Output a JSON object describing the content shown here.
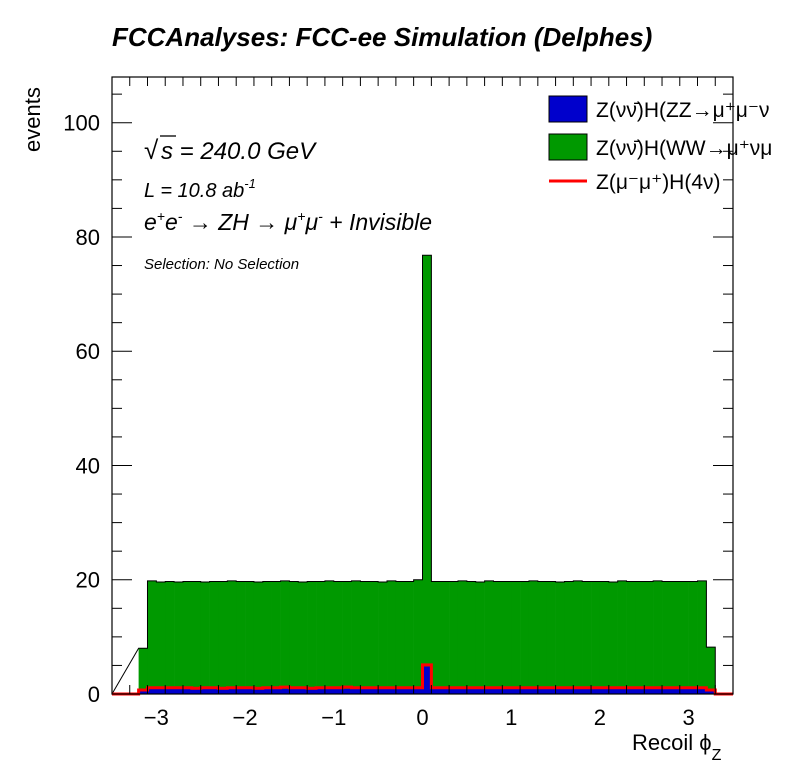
{
  "chart_data": {
    "type": "bar",
    "title": "FCCAnalyses: FCC-ee Simulation (Delphes)",
    "xlabel": "Recoil ϕ",
    "xlabel_sub": "Z",
    "ylabel": "events",
    "xlim": [
      -3.5,
      3.5
    ],
    "ylim": [
      0,
      108
    ],
    "x_ticks": [
      -3,
      -2,
      -1,
      0,
      1,
      2,
      3
    ],
    "x_tick_labels": [
      "−3",
      "−2",
      "−1",
      "0",
      "1",
      "2",
      "3"
    ],
    "y_ticks": [
      0,
      20,
      40,
      60,
      80,
      100
    ],
    "y_tick_labels": [
      "0",
      "20",
      "40",
      "60",
      "80",
      "100"
    ],
    "grid": false,
    "legend_position": "top-right",
    "annotations": {
      "sqrt_s": "s = 240.0 GeV",
      "lumi": "L = 10.8 ab",
      "lumi_exp": "-1",
      "process": "e",
      "selection": "Selection: No Selection"
    },
    "bin_edges_start": -3.2,
    "bin_width": 0.1,
    "series": [
      {
        "name": "Z(νν̄)H(ZZ→μ⁺μ⁻ν",
        "style": "stacked-fill",
        "color": "#0000cc",
        "values": [
          0.8,
          0.9,
          0.9,
          0.9,
          0.9,
          0.9,
          0.9,
          0.9,
          0.9,
          0.9,
          0.9,
          0.9,
          0.9,
          0.9,
          0.9,
          0.9,
          0.9,
          0.9,
          0.9,
          0.9,
          0.9,
          0.9,
          0.9,
          0.9,
          0.9,
          0.9,
          0.9,
          0.9,
          0.9,
          0.9,
          0.9,
          0.9,
          4.8,
          0.9,
          0.9,
          0.9,
          0.9,
          0.9,
          0.9,
          0.9,
          0.9,
          0.9,
          0.9,
          0.9,
          0.9,
          0.9,
          0.9,
          0.9,
          0.9,
          0.9,
          0.9,
          0.9,
          0.9,
          0.9,
          0.9,
          0.9,
          0.9,
          0.9,
          0.9,
          0.9,
          0.9,
          0.9,
          0.9,
          0.9,
          0.8
        ]
      },
      {
        "name": "Z(νν̄)H(WW→μ⁺νμ",
        "style": "stacked-fill",
        "color": "#009900",
        "values": [
          7.2,
          18.9,
          18.7,
          18.8,
          18.7,
          18.8,
          18.8,
          18.7,
          18.8,
          18.8,
          18.9,
          18.8,
          18.8,
          18.7,
          18.8,
          18.8,
          18.9,
          18.8,
          18.7,
          18.8,
          18.8,
          18.9,
          18.8,
          18.8,
          18.9,
          18.8,
          18.8,
          18.7,
          18.9,
          18.8,
          18.8,
          19.1,
          72.0,
          18.8,
          18.8,
          18.8,
          18.9,
          18.8,
          18.7,
          18.9,
          18.8,
          18.8,
          18.8,
          18.8,
          18.9,
          18.8,
          18.8,
          18.7,
          18.8,
          18.9,
          18.8,
          18.8,
          18.8,
          18.7,
          18.9,
          18.8,
          18.8,
          18.8,
          18.9,
          18.8,
          18.8,
          18.8,
          18.8,
          18.9,
          7.4
        ]
      },
      {
        "name": "Z(μ⁻μ⁺)H(4ν)",
        "style": "line",
        "color": "#ff0000",
        "values": [
          0.7,
          1.1,
          1.1,
          1.1,
          1.1,
          1.1,
          1.0,
          1.1,
          1.1,
          1.0,
          1.1,
          1.1,
          1.1,
          1.0,
          1.1,
          1.1,
          1.2,
          1.1,
          1.1,
          1.0,
          1.1,
          1.1,
          1.1,
          1.2,
          1.1,
          1.1,
          1.1,
          1.1,
          1.1,
          1.1,
          1.1,
          1.1,
          5.1,
          1.1,
          1.1,
          1.1,
          1.1,
          1.1,
          1.1,
          1.1,
          1.1,
          1.1,
          1.1,
          1.1,
          1.1,
          1.1,
          1.1,
          1.1,
          1.1,
          1.1,
          1.1,
          1.1,
          1.1,
          1.1,
          1.1,
          1.1,
          1.1,
          1.1,
          1.1,
          1.1,
          1.1,
          1.1,
          1.1,
          1.1,
          0.7
        ]
      }
    ]
  }
}
